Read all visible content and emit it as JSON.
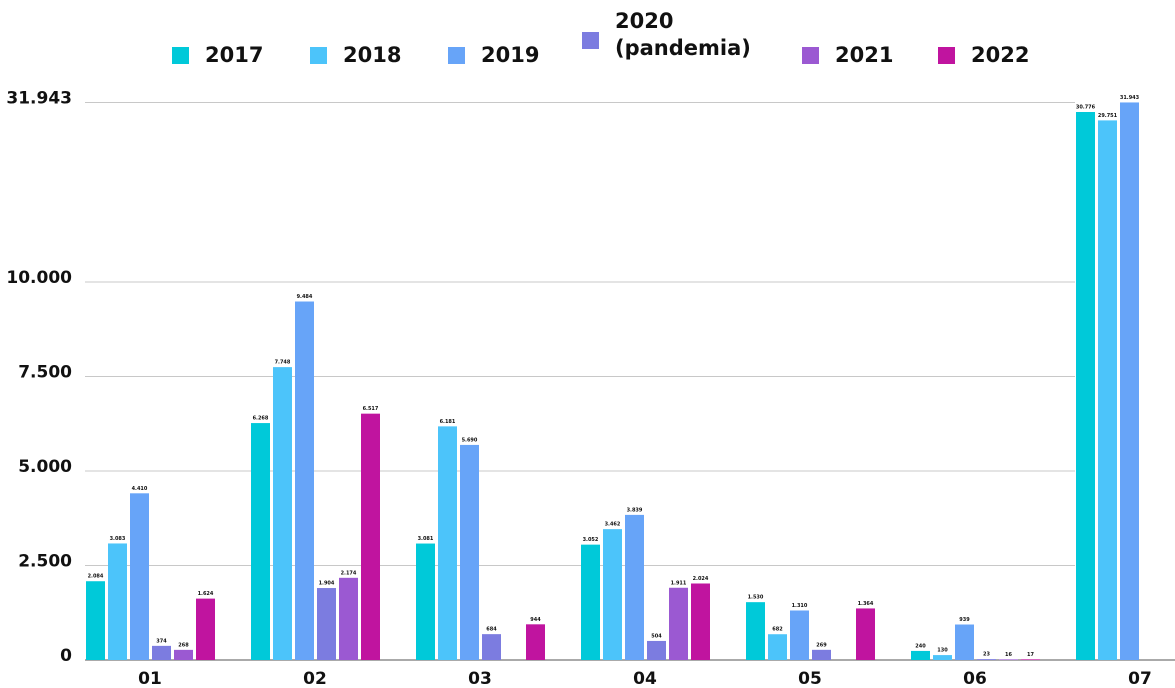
{
  "chart_data": {
    "type": "bar",
    "categories": [
      "01",
      "02",
      "03",
      "04",
      "05",
      "06",
      "07"
    ],
    "series": [
      {
        "name": "2017",
        "color": "#00c9d9",
        "values": [
          2084,
          6268,
          3081,
          3052,
          1530,
          240,
          30776
        ],
        "value_labels": [
          "2.084",
          "6.268",
          "3.081",
          "3.052",
          "1.530",
          "240",
          "30.776"
        ]
      },
      {
        "name": "2018",
        "color": "#4cc4fa",
        "values": [
          3083,
          7748,
          6181,
          3462,
          682,
          130,
          29751
        ],
        "value_labels": [
          "3.083",
          "7.748",
          "6.181",
          "3.462",
          "682",
          "130",
          "29.751"
        ]
      },
      {
        "name": "2019",
        "color": "#67a4f8",
        "values": [
          4410,
          9484,
          5690,
          3839,
          1310,
          939,
          31943
        ],
        "value_labels": [
          "4.410",
          "9.484",
          "5.690",
          "3.839",
          "1.310",
          "939",
          "31.943"
        ]
      },
      {
        "name": "2020 (pandemia)",
        "color": "#7c7ce0",
        "values": [
          374,
          1904,
          684,
          504,
          269,
          23,
          null
        ],
        "value_labels": [
          "374",
          "1.904",
          "684",
          "504",
          "269",
          "23",
          null
        ]
      },
      {
        "name": "2021",
        "color": "#9b59d2",
        "values": [
          268,
          2174,
          null,
          1911,
          null,
          16,
          null
        ],
        "value_labels": [
          "268",
          "2.174",
          null,
          "1.911",
          null,
          "16",
          null
        ]
      },
      {
        "name": "2022",
        "color": "#c0149f",
        "values": [
          1624,
          6517,
          944,
          2024,
          1364,
          17,
          null
        ],
        "value_labels": [
          "1.624",
          "6.517",
          "944",
          "2.024",
          "1.364",
          "17",
          null
        ]
      }
    ],
    "ylim": [
      0,
      31943
    ],
    "yticks": [
      0,
      {
        "value": 2500,
        "label": "2.500"
      },
      {
        "value": 5000,
        "label": "5.000"
      },
      {
        "value": 7500,
        "label": "7.500"
      },
      {
        "value": 10000,
        "label": "10.000"
      },
      {
        "value": 31943,
        "label": "31.943"
      }
    ],
    "grid": true,
    "legend": "top"
  }
}
